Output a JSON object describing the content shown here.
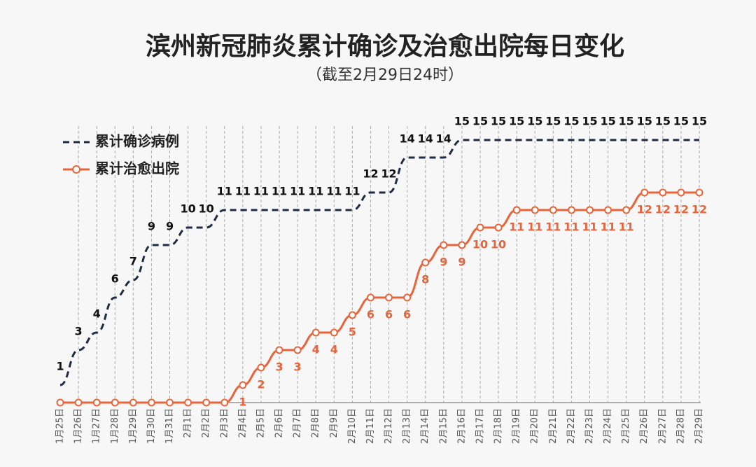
{
  "chart_data": {
    "type": "line",
    "title": "滨州新冠肺炎累计确诊及治愈出院每日变化",
    "subtitle": "（截至2月29日24时）",
    "categories": [
      "1月25日",
      "1月26日",
      "1月27日",
      "1月28日",
      "1月29日",
      "1月30日",
      "1月31日",
      "2月1日",
      "2月2日",
      "2月3日",
      "2月4日",
      "2月5日",
      "2月6日",
      "2月7日",
      "2月8日",
      "2月9日",
      "2月10日",
      "2月11日",
      "2月12日",
      "2月13日",
      "2月14日",
      "2月15日",
      "2月16日",
      "2月17日",
      "2月18日",
      "2月19日",
      "2月20日",
      "2月21日",
      "2月22日",
      "2月23日",
      "2月24日",
      "2月25日",
      "2月26日",
      "2月27日",
      "2月28日",
      "2月29日"
    ],
    "series": [
      {
        "name": "累计确诊病例",
        "color": "#1f2a44",
        "values": [
          1,
          3,
          4,
          6,
          7,
          9,
          9,
          10,
          10,
          11,
          11,
          11,
          11,
          11,
          11,
          11,
          11,
          12,
          12,
          14,
          14,
          14,
          15,
          15,
          15,
          15,
          15,
          15,
          15,
          15,
          15,
          15,
          15,
          15,
          15,
          15
        ]
      },
      {
        "name": "累计治愈出院",
        "color": "#e8643a",
        "values": [
          0,
          0,
          0,
          0,
          0,
          0,
          0,
          0,
          0,
          0,
          1,
          2,
          3,
          3,
          4,
          4,
          5,
          6,
          6,
          6,
          8,
          9,
          9,
          10,
          10,
          11,
          11,
          11,
          11,
          11,
          11,
          11,
          12,
          12,
          12,
          12
        ]
      }
    ],
    "ylim": [
      0,
      15
    ],
    "grid": true,
    "legend": "top-left"
  }
}
